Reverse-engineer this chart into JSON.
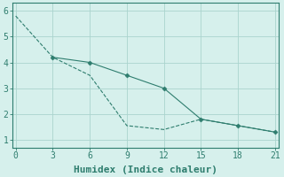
{
  "line1": {
    "x": [
      0,
      3,
      6,
      9,
      12,
      15,
      18,
      21
    ],
    "y": [
      5.8,
      4.2,
      3.5,
      1.55,
      1.4,
      1.8,
      1.55,
      1.3
    ],
    "color": "#2e7d6e",
    "linestyle": "dashed",
    "linewidth": 0.8,
    "marker": null
  },
  "line2": {
    "x": [
      3,
      6,
      9,
      12,
      15,
      18,
      21
    ],
    "y": [
      4.2,
      4.0,
      3.5,
      3.0,
      1.8,
      1.55,
      1.3
    ],
    "color": "#2e7d6e",
    "linestyle": "solid",
    "linewidth": 0.8,
    "marker": "D",
    "markersize": 2.5
  },
  "xlabel": "Humidex (Indice chaleur)",
  "xlim": [
    -0.3,
    21.3
  ],
  "ylim": [
    0.7,
    6.3
  ],
  "xticks": [
    0,
    3,
    6,
    9,
    12,
    15,
    18,
    21
  ],
  "yticks": [
    1,
    2,
    3,
    4,
    5,
    6
  ],
  "background_color": "#d6f0ec",
  "grid_color": "#aad4ce",
  "line_color": "#2e7d6e",
  "xlabel_fontsize": 8,
  "tick_fontsize": 7
}
